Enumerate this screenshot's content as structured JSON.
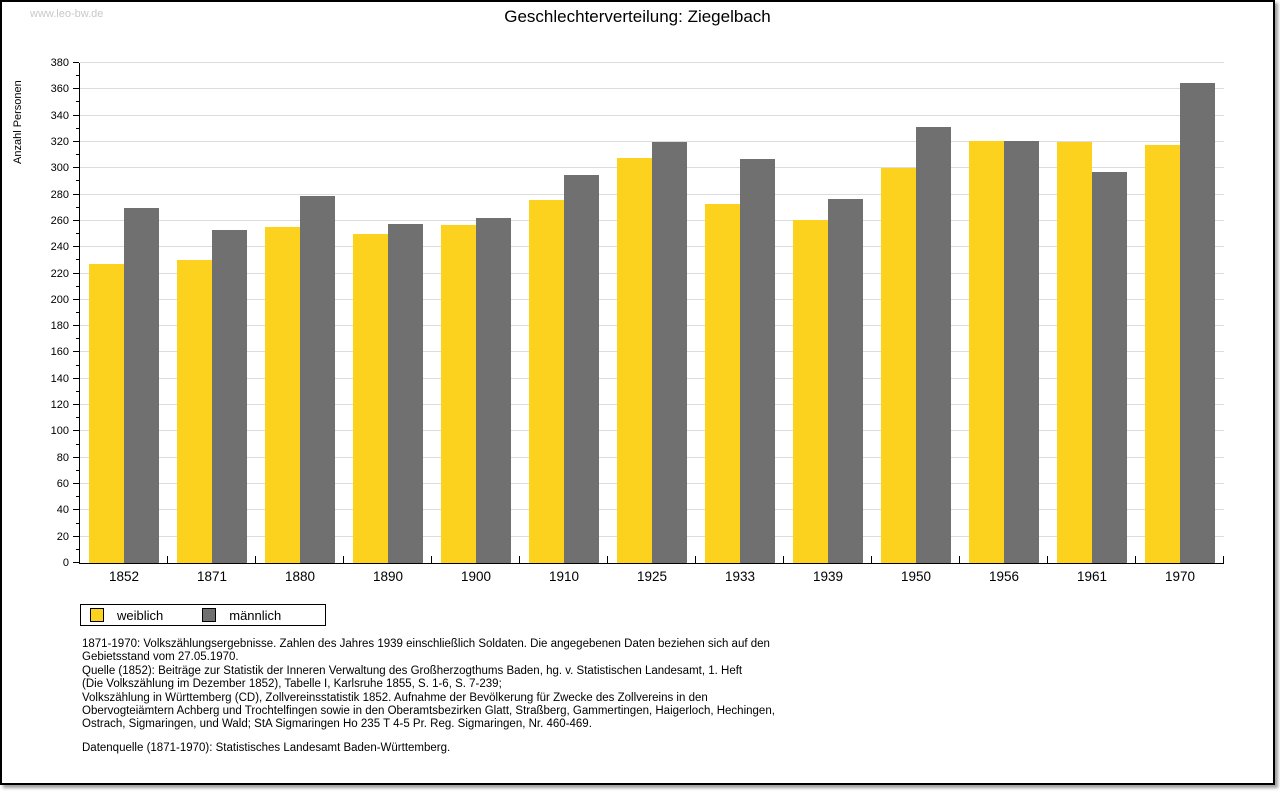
{
  "watermark": "www.leo-bw.de",
  "title": "Geschlechterverteilung: Ziegelbach",
  "chart_data": {
    "type": "bar",
    "title": "Geschlechterverteilung: Ziegelbach",
    "categories": [
      "1852",
      "1871",
      "1880",
      "1890",
      "1900",
      "1910",
      "1925",
      "1933",
      "1939",
      "1950",
      "1956",
      "1961",
      "1970"
    ],
    "series": [
      {
        "name": "weiblich",
        "color": "#fcd21f",
        "values": [
          227,
          230,
          255,
          250,
          257,
          276,
          308,
          273,
          261,
          300,
          321,
          320,
          318
        ]
      },
      {
        "name": "männlich",
        "color": "#707070",
        "values": [
          270,
          253,
          279,
          258,
          262,
          295,
          320,
          307,
          277,
          331,
          321,
          297,
          365
        ]
      }
    ],
    "xlabel": "",
    "ylabel": "Anzahl Personen",
    "ylim": [
      0,
      380
    ],
    "ytick_step": 20,
    "yminor_step": 10,
    "grid": true,
    "legend_position": "bottom-left"
  },
  "legend": {
    "items": [
      {
        "label": "weiblich",
        "color": "#fcd21f"
      },
      {
        "label": "männlich",
        "color": "#707070"
      }
    ]
  },
  "footnotes": [
    "1871-1970: Volkszählungsergebnisse. Zahlen des Jahres 1939 einschließlich Soldaten. Die angegebenen Daten beziehen sich auf den",
    "Gebietsstand vom 27.05.1970.",
    "Quelle (1852): Beiträge zur Statistik der Inneren Verwaltung des Großherzogthums Baden, hg. v. Statistischen Landesamt, 1. Heft",
    "(Die Volkszählung im Dezember 1852), Tabelle I, Karlsruhe 1855, S. 1-6, S. 7-239;",
    "Volkszählung in Württemberg (CD), Zollvereinsstatistik 1852. Aufnahme der Bevölkerung für Zwecke des Zollvereins in den",
    "Obervogteiämtern Achberg und Trochtelfingen sowie in den Oberamtsbezirken Glatt, Straßberg, Gammertingen, Haigerloch, Hechingen,",
    "Ostrach, Sigmaringen, und Wald; StA Sigmaringen Ho 235 T 4-5 Pr. Reg. Sigmaringen, Nr. 460-469."
  ],
  "datasource": "Datenquelle (1871-1970): Statistisches Landesamt Baden-Württemberg.",
  "colors": {
    "grid": "#dcdcdc",
    "axis": "#000000",
    "watermark": "#c9c9c9"
  }
}
